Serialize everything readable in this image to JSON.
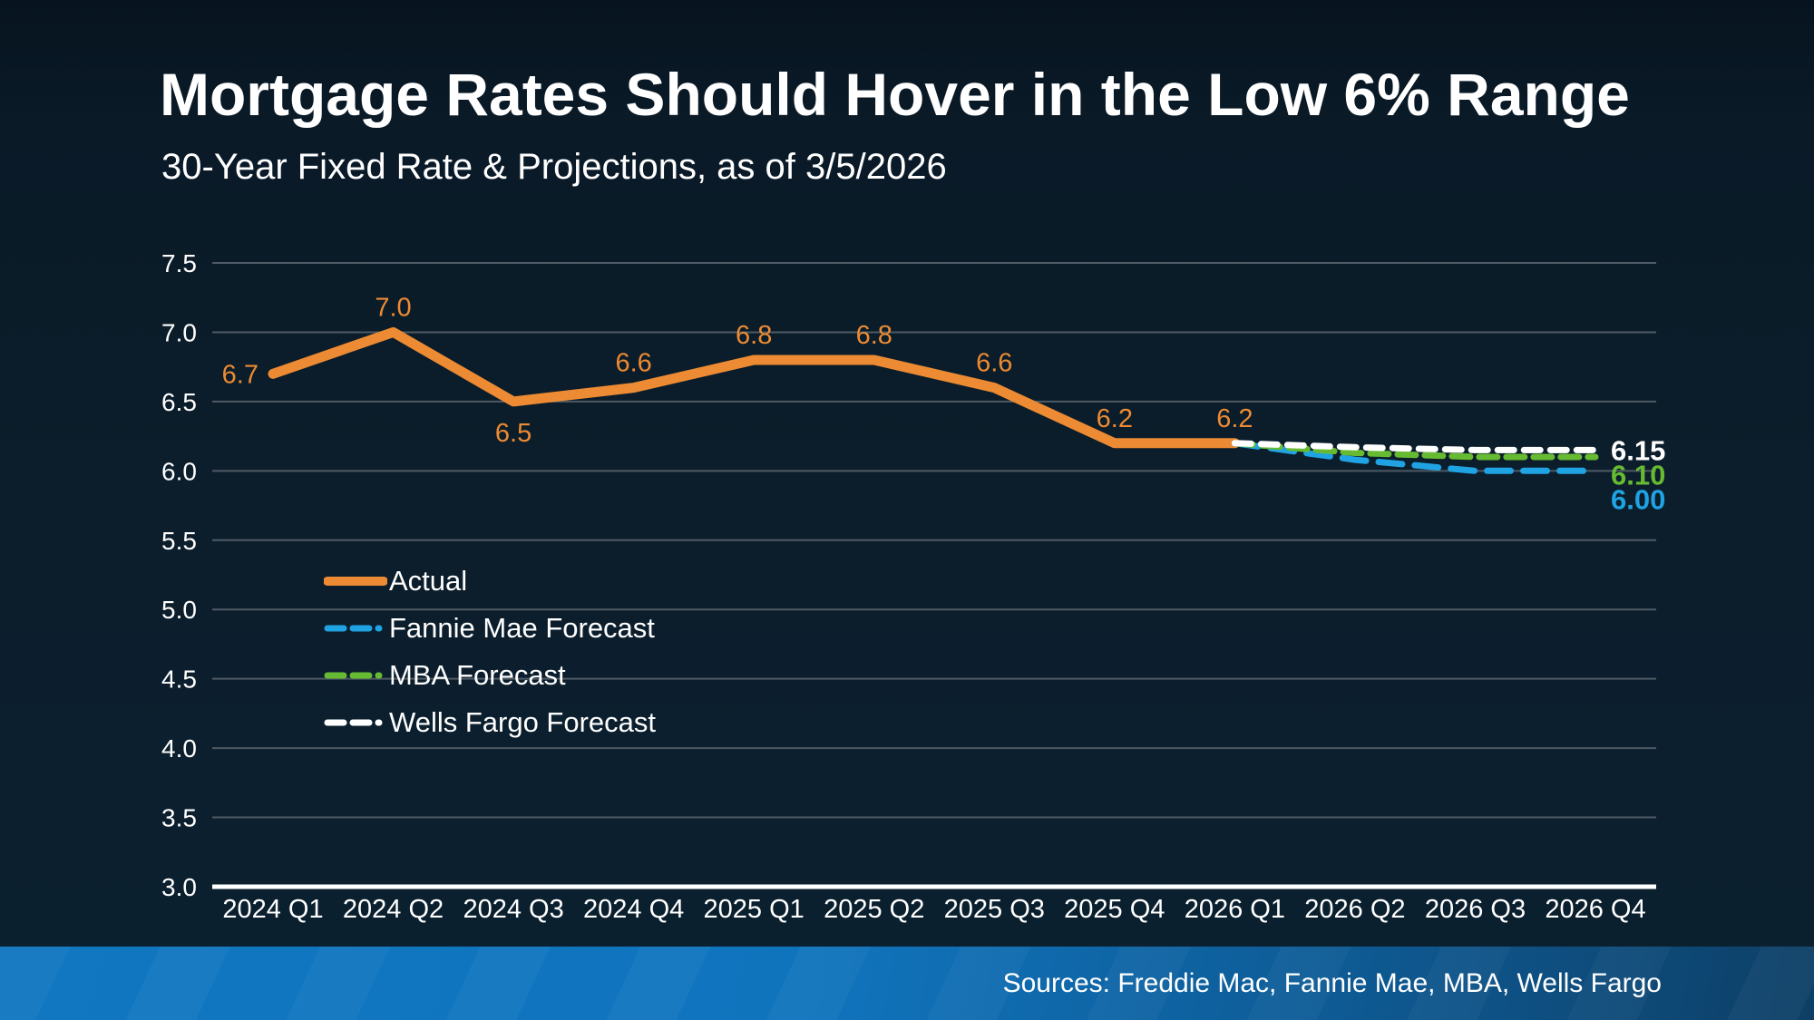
{
  "header": {
    "title": "Mortgage Rates Should Hover in the Low 6% Range",
    "subtitle": "30-Year Fixed Rate & Projections, as of 3/5/2026"
  },
  "footer": {
    "sources": "Sources: Freddie Mac, Fannie Mae, MBA, Wells Fargo"
  },
  "colors": {
    "actual": "#EC8B33",
    "fannie_mae": "#1FA3E3",
    "mba": "#66BB33",
    "wells_fargo": "#FFFFFF",
    "gridline": "#4e5a64",
    "axis_line": "#FFFFFF",
    "background": "#0B1C29",
    "footer_left": "#1177C1",
    "footer_right": "#0D3F66"
  },
  "legend": {
    "items": [
      {
        "label": "Actual",
        "color": "#EC8B33",
        "style": "solid"
      },
      {
        "label": "Fannie Mae Forecast",
        "color": "#1FA3E3",
        "style": "dashed"
      },
      {
        "label": "MBA Forecast",
        "color": "#66BB33",
        "style": "dashed"
      },
      {
        "label": "Wells Fargo Forecast",
        "color": "#FFFFFF",
        "style": "dashed"
      }
    ]
  },
  "chart_data": {
    "type": "line",
    "title": "Mortgage Rates Should Hover in the Low 6% Range",
    "subtitle": "30-Year Fixed Rate & Projections, as of 3/5/2026",
    "categories": [
      "2024 Q1",
      "2024 Q2",
      "2024 Q3",
      "2024 Q4",
      "2025 Q1",
      "2025 Q2",
      "2025 Q3",
      "2025 Q4",
      "2026 Q1",
      "2026 Q2",
      "2026 Q3",
      "2026 Q4"
    ],
    "ylim": [
      3.0,
      7.5
    ],
    "ytick_step": 0.5,
    "grid": "horizontal",
    "legend_position": "inside-left",
    "series": [
      {
        "name": "Actual",
        "color": "#EC8B33",
        "style": "solid",
        "start_index": 0,
        "values": [
          6.7,
          7.0,
          6.5,
          6.6,
          6.8,
          6.8,
          6.6,
          6.2,
          6.2
        ],
        "point_labels": [
          "6.7",
          "7.0",
          "6.5",
          "6.6",
          "6.8",
          "6.8",
          "6.6",
          "6.2",
          "6.2"
        ],
        "label_placement": [
          "left",
          "above",
          "below",
          "above",
          "above",
          "above",
          "above",
          "above",
          "above"
        ]
      },
      {
        "name": "Fannie Mae Forecast",
        "color": "#1FA3E3",
        "style": "dashed",
        "dash": "26 14",
        "start_index": 8,
        "values": [
          6.2,
          6.08,
          6.0,
          6.0
        ],
        "end_label": "6.00"
      },
      {
        "name": "MBA Forecast",
        "color": "#66BB33",
        "style": "dashed",
        "dash": "20 10",
        "start_index": 8,
        "values": [
          6.2,
          6.13,
          6.1,
          6.1
        ],
        "end_label": "6.10"
      },
      {
        "name": "Wells Fargo Forecast",
        "color": "#FFFFFF",
        "style": "dashed",
        "dash": "18 11",
        "start_index": 8,
        "values": [
          6.2,
          6.17,
          6.15,
          6.15
        ],
        "end_label": "6.15"
      }
    ]
  }
}
